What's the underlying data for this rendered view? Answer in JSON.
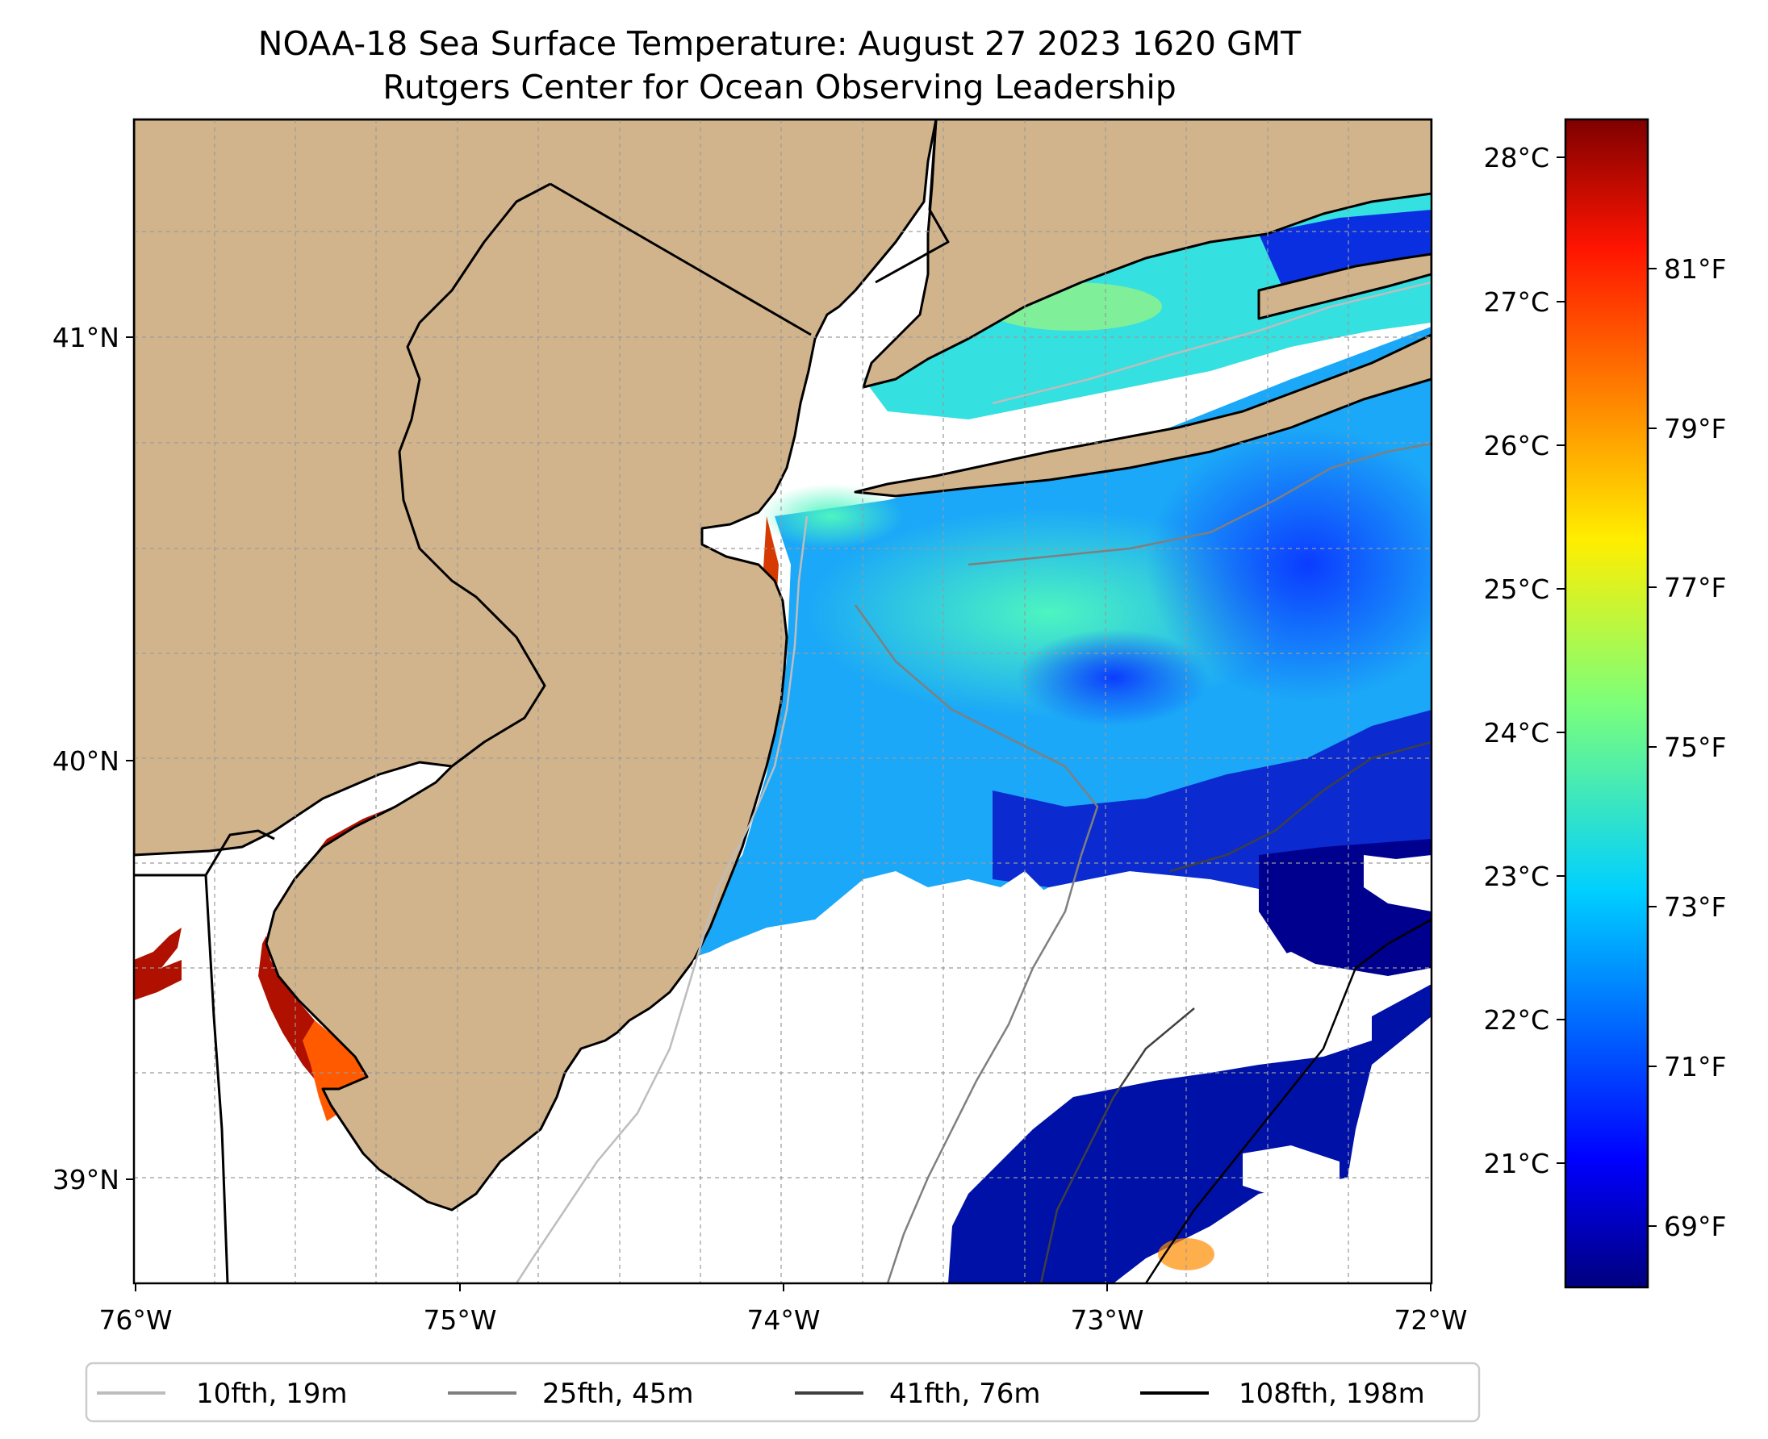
{
  "title": {
    "line1": "NOAA-18 Sea Surface Temperature: August 27 2023 1620 GMT",
    "line2": "Rutgers Center for Ocean Observing Leadership"
  },
  "map": {
    "extent": {
      "lon_min": -76.0,
      "lon_max": -72.0,
      "lat_min": 38.75,
      "lat_max": 41.52
    },
    "lon_ticks": [
      "76°W",
      "75°W",
      "74°W",
      "73°W",
      "72°W"
    ],
    "lat_ticks": [
      "41°N",
      "40°N",
      "39°N"
    ],
    "land_color": "#d2b48c",
    "no_data_color": "#ffffff",
    "gridlines": true
  },
  "colorbar": {
    "colormap": "jet",
    "celsius_labels": [
      "28°C",
      "27°C",
      "26°C",
      "25°C",
      "24°C",
      "23°C",
      "22°C",
      "21°C"
    ],
    "fahrenheit_labels": [
      "81°F",
      "79°F",
      "77°F",
      "75°F",
      "73°F",
      "71°F",
      "69°F"
    ]
  },
  "legend": {
    "items": [
      {
        "label": "10fth, 19m",
        "color": "#bdbdbd"
      },
      {
        "label": "25fth, 45m",
        "color": "#7f7f7f"
      },
      {
        "label": "41fth, 76m",
        "color": "#404040"
      },
      {
        "label": "108fth, 198m",
        "color": "#000000"
      }
    ]
  }
}
